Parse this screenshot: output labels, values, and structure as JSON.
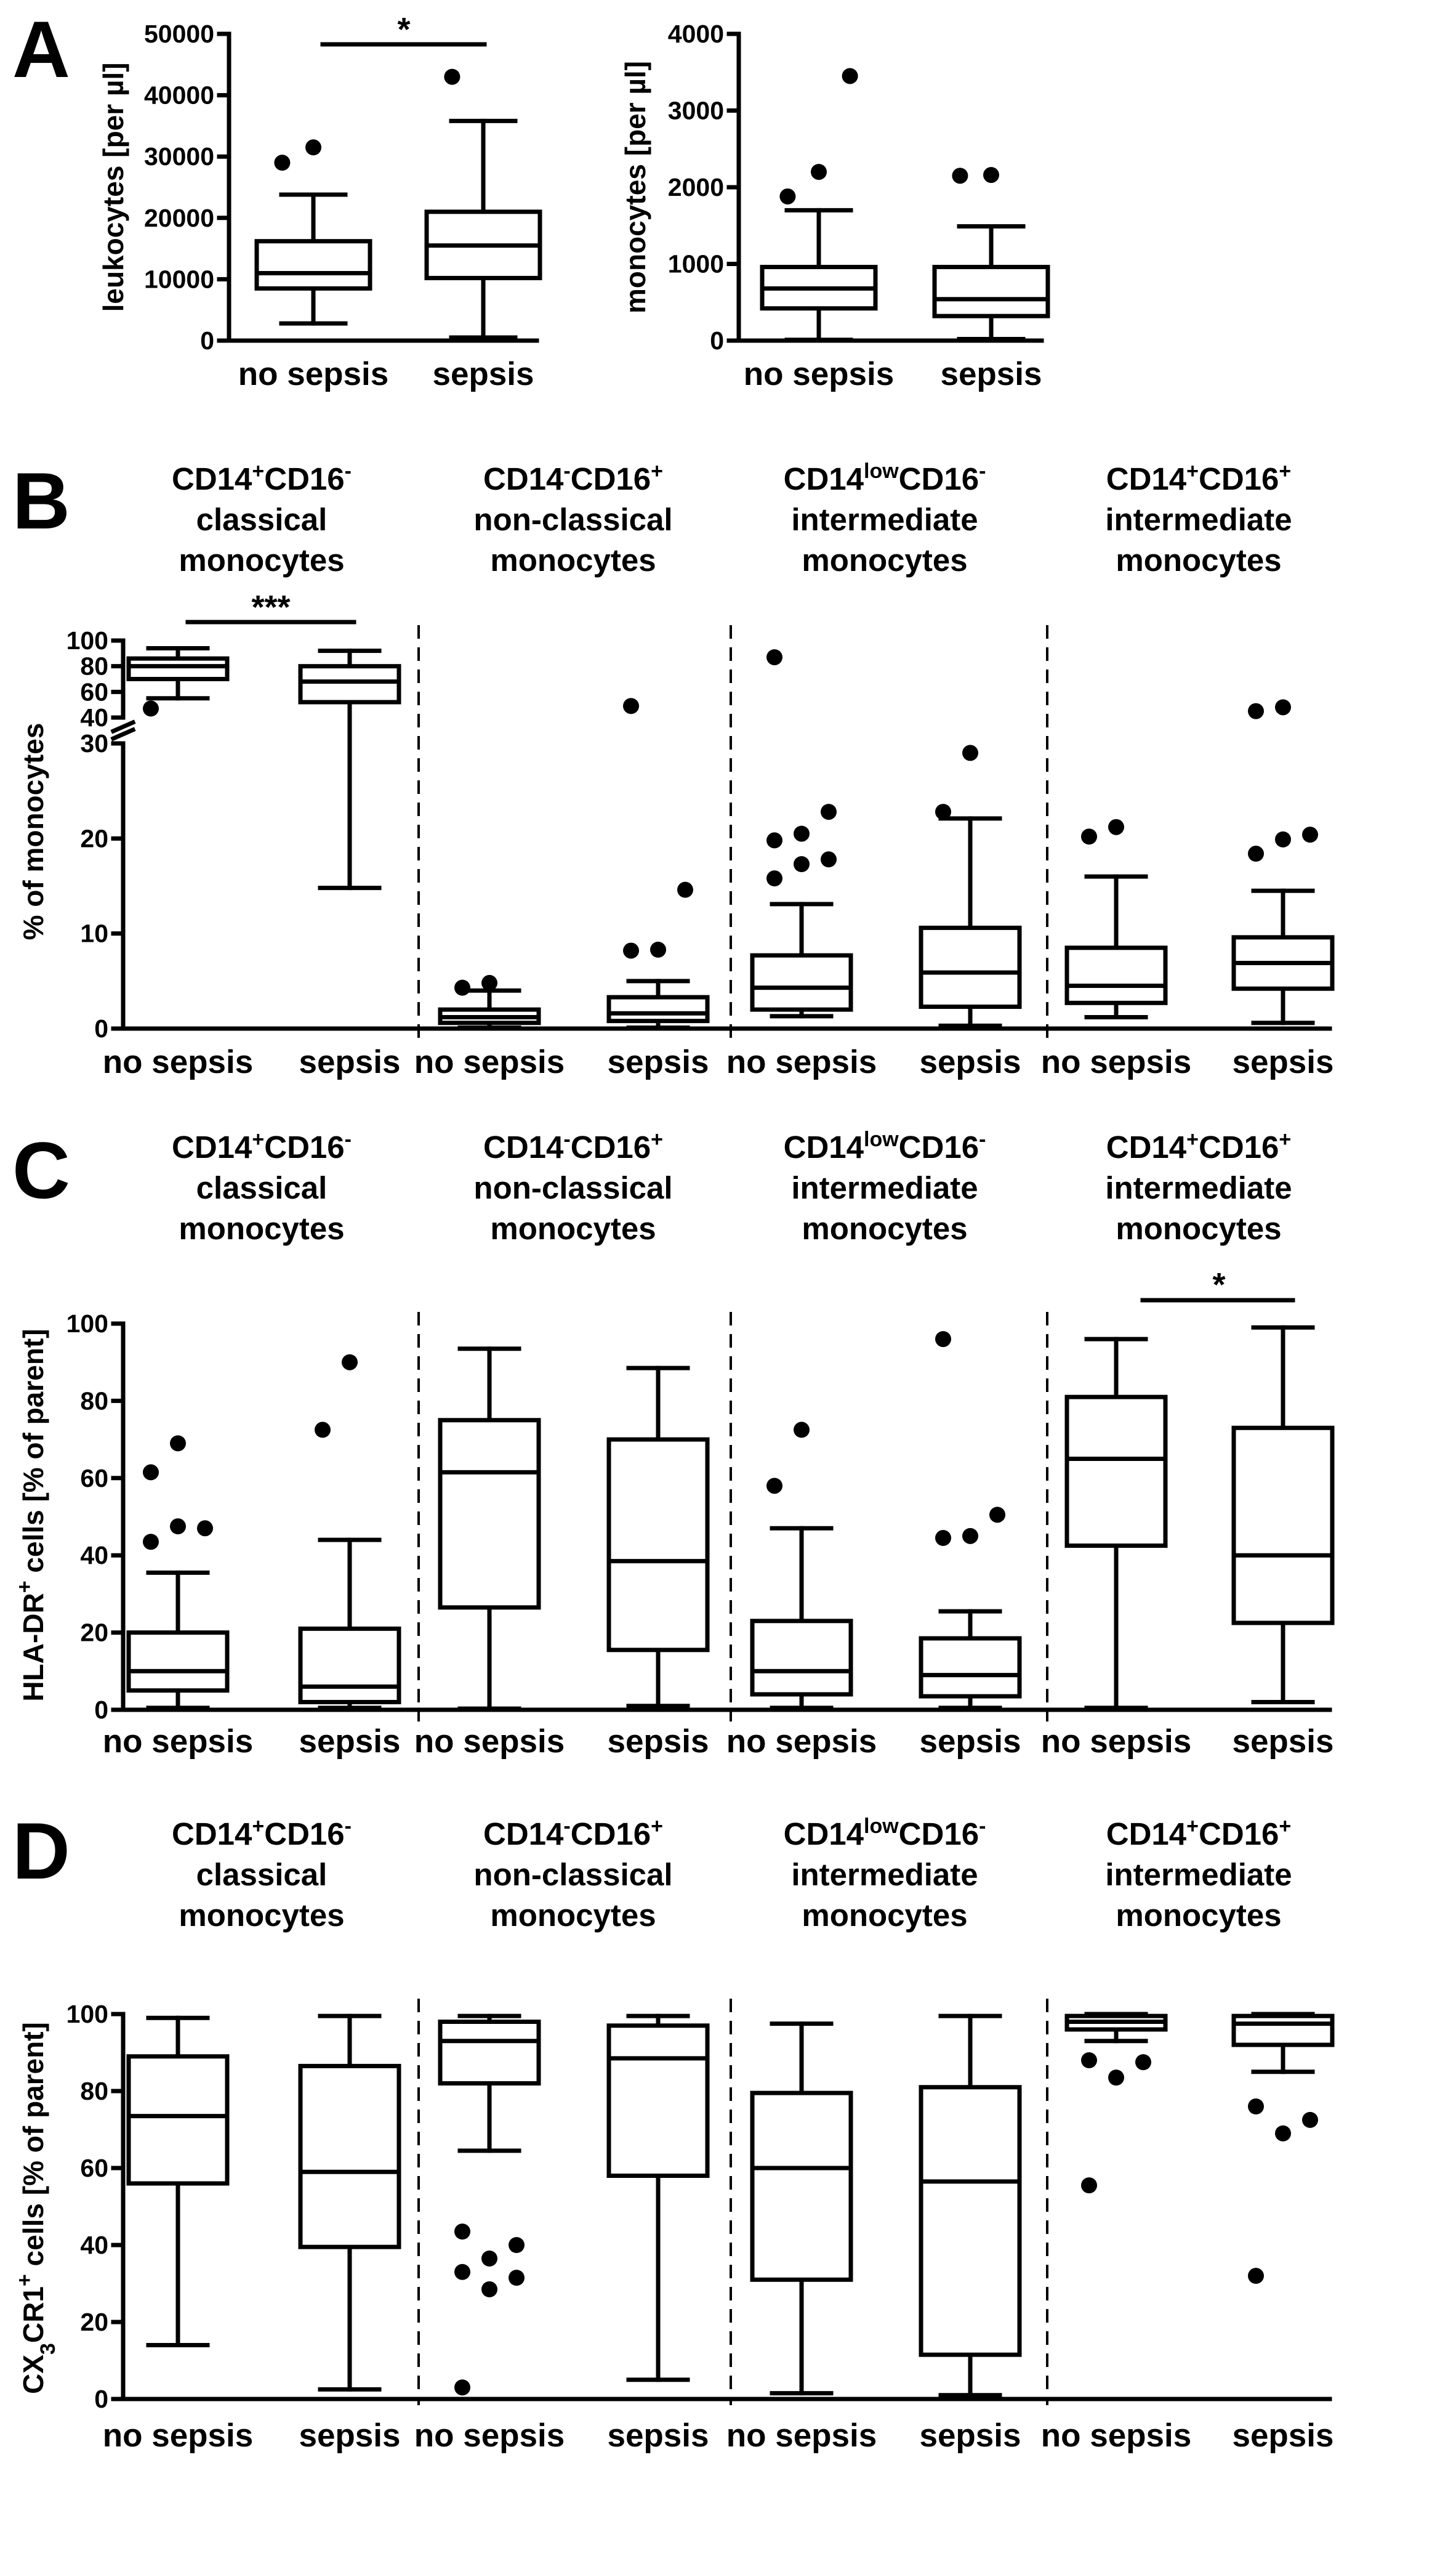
{
  "panels": {
    "A": {
      "letter": "A",
      "plots": [
        {
          "ylabel": "leukocytes [per µl]",
          "yticks": [
            "0",
            "10000",
            "20000",
            "30000",
            "40000",
            "50000"
          ],
          "categories": [
            "no sepsis",
            "sepsis"
          ],
          "significance": "*"
        },
        {
          "ylabel": "monocytes [per µl]",
          "yticks": [
            "0",
            "1000",
            "2000",
            "3000",
            "4000"
          ],
          "categories": [
            "no sepsis",
            "sepsis"
          ]
        }
      ]
    },
    "B": {
      "letter": "B",
      "ylabel": "% of monocytes",
      "yticks_lower": [
        "0",
        "10",
        "20",
        "30"
      ],
      "yticks_upper": [
        "40",
        "60",
        "80",
        "100"
      ],
      "groups": [
        {
          "marker1": "CD14",
          "sup1": "+",
          "marker2": "CD16",
          "sup2": "-",
          "line2": "classical",
          "line3": "monocytes",
          "significance": "***"
        },
        {
          "marker1": "CD14",
          "sup1": "-",
          "marker2": "CD16",
          "sup2": "+",
          "line2": "non-classical",
          "line3": "monocytes"
        },
        {
          "marker1": "CD14",
          "sup1": "low",
          "marker2": "CD16",
          "sup2": "-",
          "line2": "intermediate",
          "line3": "monocytes"
        },
        {
          "marker1": "CD14",
          "sup1": "+",
          "marker2": "CD16",
          "sup2": "+",
          "line2": "intermediate",
          "line3": "monocytes"
        }
      ],
      "categories": [
        "no sepsis",
        "sepsis"
      ]
    },
    "C": {
      "letter": "C",
      "ylabel_pre": "HLA-DR",
      "ylabel_sup": "+",
      "ylabel_post": " cells [% of parent]",
      "yticks": [
        "0",
        "20",
        "40",
        "60",
        "80",
        "100"
      ],
      "groups": [
        {
          "marker1": "CD14",
          "sup1": "+",
          "marker2": "CD16",
          "sup2": "-",
          "line2": "classical",
          "line3": "monocytes"
        },
        {
          "marker1": "CD14",
          "sup1": "-",
          "marker2": "CD16",
          "sup2": "+",
          "line2": "non-classical",
          "line3": "monocytes"
        },
        {
          "marker1": "CD14",
          "sup1": "low",
          "marker2": "CD16",
          "sup2": "-",
          "line2": "intermediate",
          "line3": "monocytes"
        },
        {
          "marker1": "CD14",
          "sup1": "+",
          "marker2": "CD16",
          "sup2": "+",
          "line2": "intermediate",
          "line3": "monocytes",
          "significance": "*"
        }
      ],
      "categories": [
        "no sepsis",
        "sepsis"
      ]
    },
    "D": {
      "letter": "D",
      "ylabel_pre": "CX",
      "ylabel_sub": "3",
      "ylabel_mid": "CR1",
      "ylabel_sup": "+",
      "ylabel_post": " cells [% of parent]",
      "yticks": [
        "0",
        "20",
        "40",
        "60",
        "80",
        "100"
      ],
      "groups": [
        {
          "marker1": "CD14",
          "sup1": "+",
          "marker2": "CD16",
          "sup2": "-",
          "line2": "classical",
          "line3": "monocytes"
        },
        {
          "marker1": "CD14",
          "sup1": "-",
          "marker2": "CD16",
          "sup2": "+",
          "line2": "non-classical",
          "line3": "monocytes"
        },
        {
          "marker1": "CD14",
          "sup1": "low",
          "marker2": "CD16",
          "sup2": "-",
          "line2": "intermediate",
          "line3": "monocytes"
        },
        {
          "marker1": "CD14",
          "sup1": "+",
          "marker2": "CD16",
          "sup2": "+",
          "line2": "intermediate",
          "line3": "monocytes"
        }
      ],
      "categories": [
        "no sepsis",
        "sepsis"
      ]
    }
  },
  "chart_data": [
    {
      "type": "box",
      "panel": "A",
      "title": "",
      "xlabel": "",
      "ylabel": "leukocytes [per µl]",
      "ylim": [
        0,
        50000
      ],
      "categories": [
        "no sepsis",
        "sepsis"
      ],
      "boxes": [
        {
          "category": "no sepsis",
          "whisker_low": 2800,
          "q1": 8500,
          "median": 11000,
          "q3": 16200,
          "whisker_high": 23800,
          "outliers": [
            29000,
            31500
          ]
        },
        {
          "category": "sepsis",
          "whisker_low": 500,
          "q1": 10200,
          "median": 15500,
          "q3": 21000,
          "whisker_high": 35800,
          "outliers": [
            43000
          ]
        }
      ],
      "annotation": "* (no sepsis vs sepsis)"
    },
    {
      "type": "box",
      "panel": "A",
      "title": "",
      "xlabel": "",
      "ylabel": "monocytes [per µl]",
      "ylim": [
        0,
        4000
      ],
      "categories": [
        "no sepsis",
        "sepsis"
      ],
      "boxes": [
        {
          "category": "no sepsis",
          "whisker_low": 10,
          "q1": 420,
          "median": 680,
          "q3": 960,
          "whisker_high": 1700,
          "outliers": [
            1880,
            2200,
            3450
          ]
        },
        {
          "category": "sepsis",
          "whisker_low": 20,
          "q1": 320,
          "median": 540,
          "q3": 960,
          "whisker_high": 1490,
          "outliers": [
            2150,
            2160
          ]
        }
      ]
    },
    {
      "type": "box",
      "panel": "B",
      "title": "",
      "xlabel": "",
      "ylabel": "% of monocytes",
      "ylim": [
        0,
        100
      ],
      "axis_break": [
        30,
        40
      ],
      "categories": [
        "classical no sepsis",
        "classical sepsis",
        "non-classical no sepsis",
        "non-classical sepsis",
        "CD14low intermediate no sepsis",
        "CD14low intermediate sepsis",
        "CD14+CD16+ intermediate no sepsis",
        "CD14+CD16+ intermediate sepsis"
      ],
      "boxes": [
        {
          "category": "classical no sepsis",
          "whisker_low": 55,
          "q1": 70,
          "median": 80,
          "q3": 86,
          "whisker_high": 94,
          "outliers": [
            47
          ]
        },
        {
          "category": "classical sepsis",
          "whisker_low": 14.8,
          "q1": 52,
          "median": 68,
          "q3": 80,
          "whisker_high": 92,
          "outliers": []
        },
        {
          "category": "non-classical no sepsis",
          "whisker_low": 0.1,
          "q1": 0.6,
          "median": 1.2,
          "q3": 2.0,
          "whisker_high": 4.0,
          "outliers": [
            4.3,
            4.8
          ]
        },
        {
          "category": "non-classical sepsis",
          "whisker_low": 0.1,
          "q1": 0.8,
          "median": 1.6,
          "q3": 3.3,
          "whisker_high": 5.0,
          "outliers": [
            8.2,
            8.3,
            14.6,
            49
          ]
        },
        {
          "category": "CD14low intermediate no sepsis",
          "whisker_low": 1.3,
          "q1": 2.0,
          "median": 4.3,
          "q3": 7.7,
          "whisker_high": 13.1,
          "outliers": [
            15.8,
            17.3,
            17.8,
            19.8,
            20.5,
            22.8,
            87
          ]
        },
        {
          "category": "CD14low intermediate sepsis",
          "whisker_low": 0.3,
          "q1": 2.3,
          "median": 5.9,
          "q3": 10.6,
          "whisker_high": 22.1,
          "outliers": [
            22.8,
            29.0
          ]
        },
        {
          "category": "CD14+CD16+ intermediate no sepsis",
          "whisker_low": 1.2,
          "q1": 2.7,
          "median": 4.5,
          "q3": 8.5,
          "whisker_high": 16.0,
          "outliers": [
            20.2,
            21.2
          ]
        },
        {
          "category": "CD14+CD16+ intermediate sepsis",
          "whisker_low": 0.6,
          "q1": 4.2,
          "median": 6.9,
          "q3": 9.6,
          "whisker_high": 14.5,
          "outliers": [
            18.4,
            19.9,
            20.4,
            45,
            48
          ]
        }
      ],
      "annotation": "*** (classical: no sepsis vs sepsis)"
    },
    {
      "type": "box",
      "panel": "C",
      "title": "",
      "xlabel": "",
      "ylabel": "HLA-DR+ cells [% of parent]",
      "ylim": [
        0,
        100
      ],
      "categories": [
        "classical no sepsis",
        "classical sepsis",
        "non-classical no sepsis",
        "non-classical sepsis",
        "CD14low intermediate no sepsis",
        "CD14low intermediate sepsis",
        "CD14+CD16+ intermediate no sepsis",
        "CD14+CD16+ intermediate sepsis"
      ],
      "boxes": [
        {
          "category": "classical no sepsis",
          "whisker_low": 0.5,
          "q1": 5,
          "median": 10,
          "q3": 20,
          "whisker_high": 35.5,
          "outliers": [
            43.5,
            47.5,
            47.0,
            61.5,
            69.0
          ]
        },
        {
          "category": "classical sepsis",
          "whisker_low": 0.5,
          "q1": 2,
          "median": 6,
          "q3": 21,
          "whisker_high": 44,
          "outliers": [
            72.5,
            90
          ]
        },
        {
          "category": "non-classical no sepsis",
          "whisker_low": 0.3,
          "q1": 26.5,
          "median": 61.5,
          "q3": 75,
          "whisker_high": 93.5,
          "outliers": []
        },
        {
          "category": "non-classical sepsis",
          "whisker_low": 1,
          "q1": 15.5,
          "median": 38.5,
          "q3": 70,
          "whisker_high": 88.5,
          "outliers": []
        },
        {
          "category": "CD14low intermediate no sepsis",
          "whisker_low": 0.5,
          "q1": 4,
          "median": 10,
          "q3": 23,
          "whisker_high": 47,
          "outliers": [
            58,
            72.5
          ]
        },
        {
          "category": "CD14low intermediate sepsis",
          "whisker_low": 0.5,
          "q1": 3.5,
          "median": 9,
          "q3": 18.5,
          "whisker_high": 25.5,
          "outliers": [
            44.5,
            45,
            50.5,
            96
          ]
        },
        {
          "category": "CD14+CD16+ intermediate no sepsis",
          "whisker_low": 0.5,
          "q1": 42.5,
          "median": 65,
          "q3": 81,
          "whisker_high": 96,
          "outliers": []
        },
        {
          "category": "CD14+CD16+ intermediate sepsis",
          "whisker_low": 2,
          "q1": 22.5,
          "median": 40,
          "q3": 73,
          "whisker_high": 99,
          "outliers": []
        }
      ],
      "annotation": "* (CD14+CD16+ intermediate: no sepsis vs sepsis)"
    },
    {
      "type": "box",
      "panel": "D",
      "title": "",
      "xlabel": "",
      "ylabel": "CX3CR1+ cells [% of parent]",
      "ylim": [
        0,
        100
      ],
      "categories": [
        "classical no sepsis",
        "classical sepsis",
        "non-classical no sepsis",
        "non-classical sepsis",
        "CD14low intermediate no sepsis",
        "CD14low intermediate sepsis",
        "CD14+CD16+ intermediate no sepsis",
        "CD14+CD16+ intermediate sepsis"
      ],
      "boxes": [
        {
          "category": "classical no sepsis",
          "whisker_low": 14,
          "q1": 56,
          "median": 73.5,
          "q3": 89,
          "whisker_high": 99,
          "outliers": []
        },
        {
          "category": "classical sepsis",
          "whisker_low": 2.5,
          "q1": 39.5,
          "median": 59,
          "q3": 86.5,
          "whisker_high": 99.5,
          "outliers": []
        },
        {
          "category": "non-classical no sepsis",
          "whisker_low": 64.5,
          "q1": 82,
          "median": 93,
          "q3": 98,
          "whisker_high": 99.5,
          "outliers": [
            3,
            28.5,
            31.5,
            33,
            36.5,
            40,
            43.5
          ]
        },
        {
          "category": "non-classical sepsis",
          "whisker_low": 5,
          "q1": 58,
          "median": 88.5,
          "q3": 97,
          "whisker_high": 99.5,
          "outliers": []
        },
        {
          "category": "CD14low intermediate no sepsis",
          "whisker_low": 1.5,
          "q1": 31,
          "median": 60,
          "q3": 79.5,
          "whisker_high": 97.5,
          "outliers": []
        },
        {
          "category": "CD14low intermediate sepsis",
          "whisker_low": 1,
          "q1": 11.5,
          "median": 56.5,
          "q3": 81,
          "whisker_high": 99.5,
          "outliers": []
        },
        {
          "category": "CD14+CD16+ intermediate no sepsis",
          "whisker_low": 93,
          "q1": 96,
          "median": 98,
          "q3": 99.5,
          "whisker_high": 100,
          "outliers": [
            55.5,
            83.5,
            87.5,
            88
          ]
        },
        {
          "category": "CD14+CD16+ intermediate sepsis",
          "whisker_low": 85,
          "q1": 92,
          "median": 97.5,
          "q3": 99.5,
          "whisker_high": 100,
          "outliers": [
            32,
            69,
            72.5,
            76
          ]
        }
      ]
    }
  ]
}
